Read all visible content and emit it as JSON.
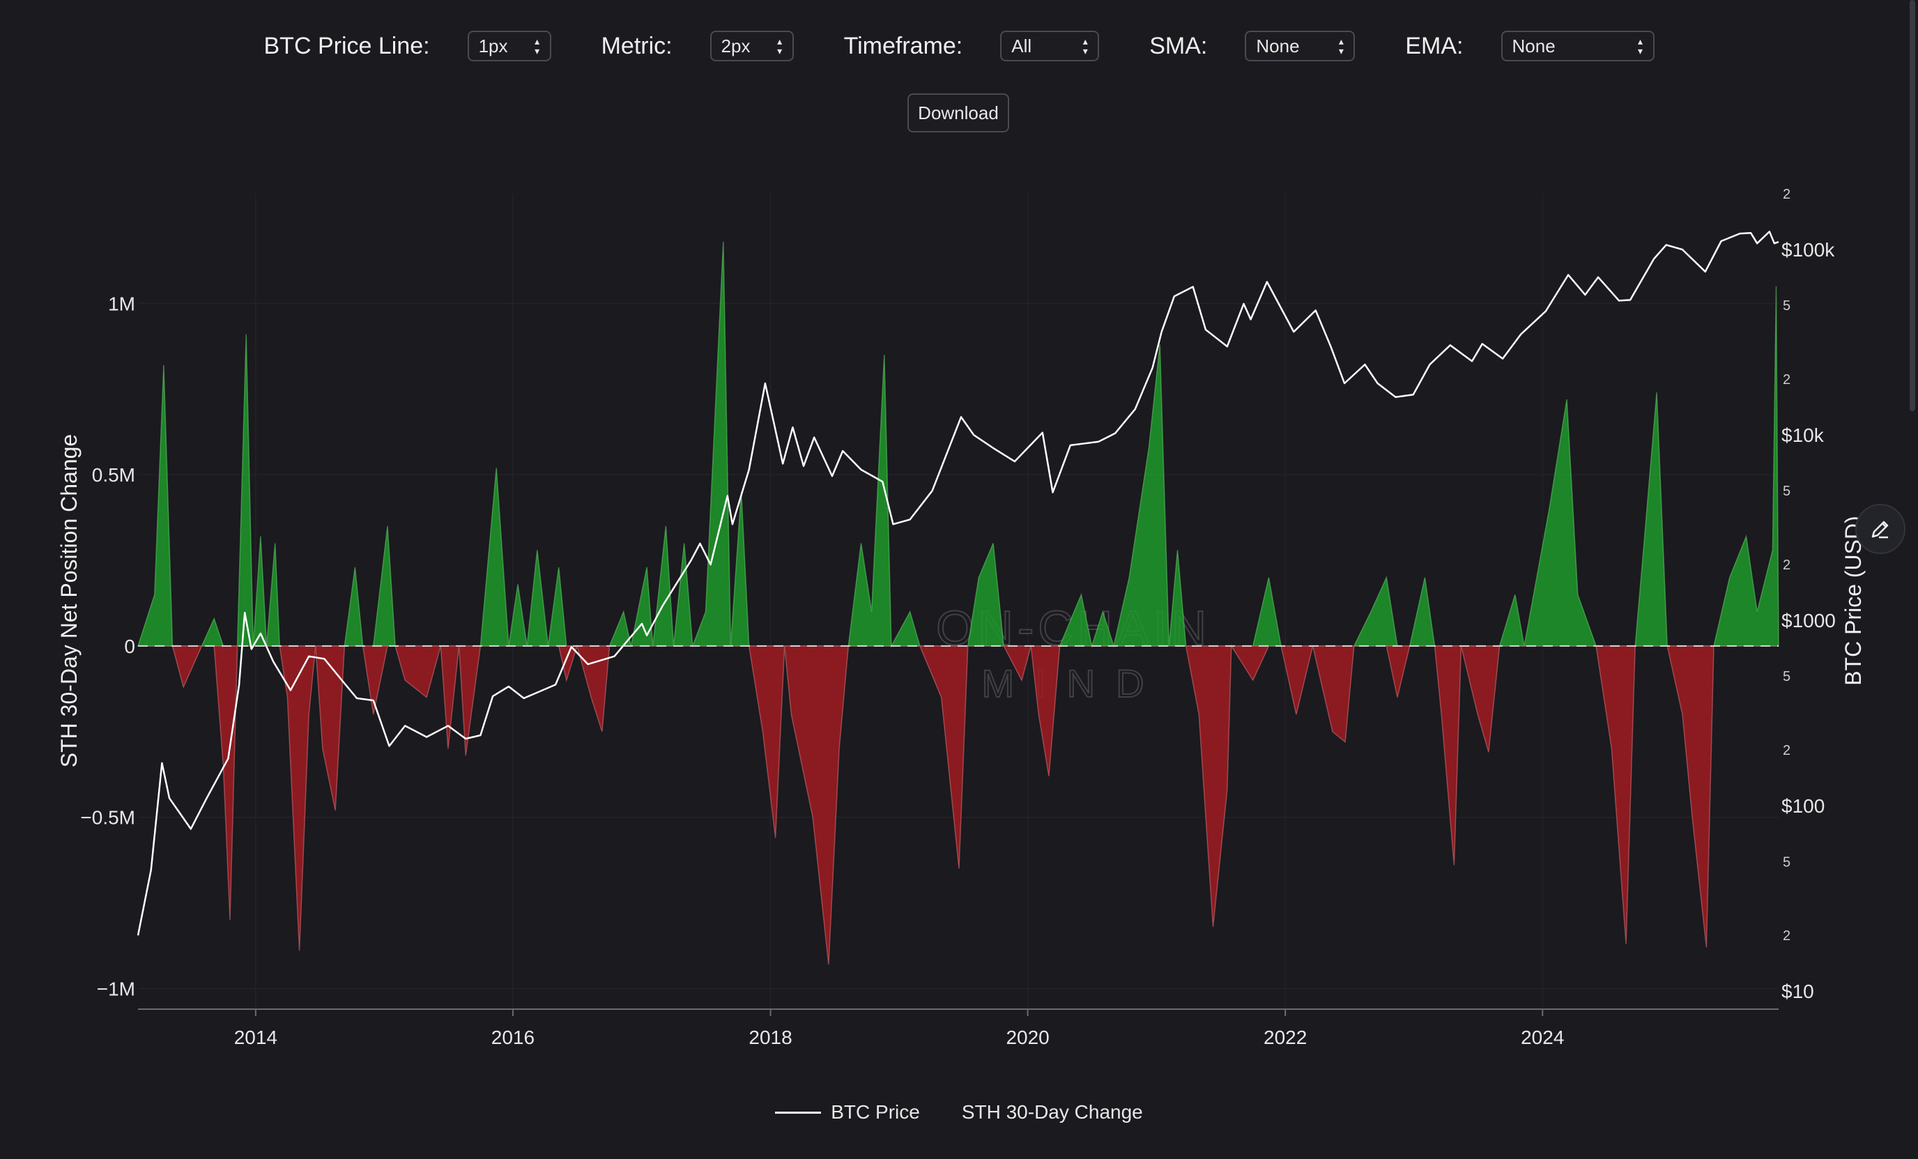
{
  "controls": {
    "price_line": {
      "label": "BTC Price Line:",
      "value": "1px"
    },
    "metric": {
      "label": "Metric:",
      "value": "2px"
    },
    "timeframe": {
      "label": "Timeframe:",
      "value": "All"
    },
    "sma": {
      "label": "SMA:",
      "value": "None"
    },
    "ema": {
      "label": "EMA:",
      "value": "None"
    },
    "download_label": "Download"
  },
  "watermark": {
    "line1": "ON-CHAIN",
    "line2": "MIND"
  },
  "icons": {
    "edit": "pencil-icon",
    "select_chevron": "chevron-updown-icon"
  },
  "colors": {
    "positive": "#1f9a2a",
    "negative": "#a01c22",
    "price": "#ffffff",
    "background": "#1a1a1f"
  },
  "chart_data": {
    "type": "area",
    "title": "",
    "xlabel": "",
    "ylabel_left": "STH 30-Day Net Position Change",
    "ylabel_right": "BTC Price (USD)",
    "x_ticks": [
      "2014",
      "2016",
      "2018",
      "2020",
      "2022",
      "2024"
    ],
    "y_left_ticks": [
      "1M",
      "0.5M",
      "0",
      "−0.5M",
      "−1M"
    ],
    "y_left_tick_values": [
      1000000,
      500000,
      0,
      -500000,
      -1000000
    ],
    "y_left_range": [
      -1060000,
      1320000
    ],
    "y_right_scale": "log",
    "y_right_range": [
      8,
      200000
    ],
    "y_right_major_ticks": [
      {
        "value": 100000,
        "label": "$100k"
      },
      {
        "value": 10000,
        "label": "$10k"
      },
      {
        "value": 1000,
        "label": "$1000"
      },
      {
        "value": 100,
        "label": "$100"
      },
      {
        "value": 10,
        "label": "$10"
      }
    ],
    "y_right_minor_ticks": [
      {
        "value": 200000,
        "label": "2"
      },
      {
        "value": 50000,
        "label": "5"
      },
      {
        "value": 20000,
        "label": "2"
      },
      {
        "value": 5000,
        "label": "5"
      },
      {
        "value": 2000,
        "label": "2"
      },
      {
        "value": 500,
        "label": "5"
      },
      {
        "value": 200,
        "label": "2"
      },
      {
        "value": 50,
        "label": "5"
      },
      {
        "value": 20,
        "label": "2"
      }
    ],
    "x_range": [
      "2013-02-01",
      "2025-11-01"
    ],
    "grid": true,
    "legend": {
      "position": "bottom",
      "entries": [
        "BTC Price",
        "STH 30-Day Change"
      ]
    },
    "series": [
      {
        "name": "BTC Price",
        "style": "line",
        "axis": "right",
        "points": [
          [
            "2013-02-01",
            20
          ],
          [
            "2013-03-10",
            45
          ],
          [
            "2013-04-10",
            170
          ],
          [
            "2013-05-01",
            110
          ],
          [
            "2013-07-01",
            75
          ],
          [
            "2013-08-15",
            110
          ],
          [
            "2013-10-15",
            180
          ],
          [
            "2013-11-15",
            450
          ],
          [
            "2013-12-01",
            1100
          ],
          [
            "2013-12-20",
            700
          ],
          [
            "2014-01-15",
            850
          ],
          [
            "2014-02-20",
            600
          ],
          [
            "2014-04-10",
            420
          ],
          [
            "2014-06-01",
            640
          ],
          [
            "2014-07-15",
            620
          ],
          [
            "2014-09-01",
            480
          ],
          [
            "2014-10-15",
            380
          ],
          [
            "2014-12-01",
            370
          ],
          [
            "2015-01-15",
            210
          ],
          [
            "2015-03-01",
            270
          ],
          [
            "2015-05-01",
            235
          ],
          [
            "2015-07-01",
            270
          ],
          [
            "2015-08-20",
            230
          ],
          [
            "2015-10-01",
            240
          ],
          [
            "2015-11-05",
            390
          ],
          [
            "2015-12-20",
            440
          ],
          [
            "2016-02-01",
            380
          ],
          [
            "2016-05-01",
            450
          ],
          [
            "2016-06-15",
            720
          ],
          [
            "2016-08-01",
            580
          ],
          [
            "2016-10-15",
            640
          ],
          [
            "2017-01-01",
            960
          ],
          [
            "2017-01-15",
            830
          ],
          [
            "2017-03-01",
            1200
          ],
          [
            "2017-05-20",
            2100
          ],
          [
            "2017-06-15",
            2600
          ],
          [
            "2017-07-15",
            2000
          ],
          [
            "2017-09-01",
            4700
          ],
          [
            "2017-09-15",
            3300
          ],
          [
            "2017-11-01",
            6500
          ],
          [
            "2017-12-17",
            19000
          ],
          [
            "2018-02-05",
            7000
          ],
          [
            "2018-03-05",
            11000
          ],
          [
            "2018-04-05",
            6800
          ],
          [
            "2018-05-05",
            9700
          ],
          [
            "2018-06-25",
            6000
          ],
          [
            "2018-07-25",
            8200
          ],
          [
            "2018-09-15",
            6500
          ],
          [
            "2018-11-15",
            5600
          ],
          [
            "2018-12-15",
            3300
          ],
          [
            "2019-02-01",
            3500
          ],
          [
            "2019-04-05",
            5000
          ],
          [
            "2019-06-26",
            12500
          ],
          [
            "2019-08-01",
            10000
          ],
          [
            "2019-09-25",
            8500
          ],
          [
            "2019-11-25",
            7200
          ],
          [
            "2020-02-12",
            10300
          ],
          [
            "2020-03-12",
            4900
          ],
          [
            "2020-05-01",
            8800
          ],
          [
            "2020-07-20",
            9200
          ],
          [
            "2020-09-05",
            10200
          ],
          [
            "2020-11-01",
            13800
          ],
          [
            "2020-12-20",
            23000
          ],
          [
            "2021-01-15",
            36000
          ],
          [
            "2021-02-20",
            56000
          ],
          [
            "2021-04-14",
            63000
          ],
          [
            "2021-05-20",
            37000
          ],
          [
            "2021-07-20",
            30000
          ],
          [
            "2021-09-05",
            51000
          ],
          [
            "2021-09-25",
            42000
          ],
          [
            "2021-11-10",
            67000
          ],
          [
            "2022-01-25",
            36000
          ],
          [
            "2022-03-28",
            47000
          ],
          [
            "2022-05-10",
            30000
          ],
          [
            "2022-06-18",
            19000
          ],
          [
            "2022-08-15",
            24000
          ],
          [
            "2022-09-20",
            19000
          ],
          [
            "2022-11-10",
            16000
          ],
          [
            "2022-12-30",
            16500
          ],
          [
            "2023-02-15",
            24000
          ],
          [
            "2023-04-14",
            30500
          ],
          [
            "2023-06-15",
            25000
          ],
          [
            "2023-07-14",
            31000
          ],
          [
            "2023-09-10",
            25800
          ],
          [
            "2023-11-01",
            35000
          ],
          [
            "2024-01-10",
            46500
          ],
          [
            "2024-03-14",
            73000
          ],
          [
            "2024-05-01",
            57000
          ],
          [
            "2024-06-07",
            71000
          ],
          [
            "2024-08-05",
            53000
          ],
          [
            "2024-09-06",
            53500
          ],
          [
            "2024-11-12",
            89000
          ],
          [
            "2024-12-17",
            106000
          ],
          [
            "2025-02-01",
            100000
          ],
          [
            "2025-04-07",
            76000
          ],
          [
            "2025-05-22",
            111000
          ],
          [
            "2025-07-14",
            122000
          ],
          [
            "2025-08-14",
            123000
          ],
          [
            "2025-09-01",
            108000
          ],
          [
            "2025-10-06",
            125000
          ],
          [
            "2025-10-20",
            108000
          ],
          [
            "2025-11-01",
            110000
          ]
        ]
      },
      {
        "name": "STH 30-Day Change",
        "style": "area",
        "axis": "left",
        "points": [
          [
            "2013-02-01",
            0
          ],
          [
            "2013-03-20",
            150000
          ],
          [
            "2013-04-15",
            820000
          ],
          [
            "2013-05-10",
            0
          ],
          [
            "2013-06-10",
            -120000
          ],
          [
            "2013-08-01",
            0
          ],
          [
            "2013-09-05",
            80000
          ],
          [
            "2013-10-01",
            -350000
          ],
          [
            "2013-10-20",
            -800000
          ],
          [
            "2013-11-10",
            0
          ],
          [
            "2013-12-05",
            910000
          ],
          [
            "2013-12-25",
            0
          ],
          [
            "2014-01-15",
            320000
          ],
          [
            "2014-02-01",
            0
          ],
          [
            "2014-02-25",
            300000
          ],
          [
            "2014-03-10",
            0
          ],
          [
            "2014-04-01",
            -150000
          ],
          [
            "2014-05-05",
            -890000
          ],
          [
            "2014-06-01",
            -200000
          ],
          [
            "2014-06-20",
            0
          ],
          [
            "2014-07-10",
            -300000
          ],
          [
            "2014-08-15",
            -480000
          ],
          [
            "2014-09-10",
            0
          ],
          [
            "2014-10-10",
            230000
          ],
          [
            "2014-11-01",
            0
          ],
          [
            "2014-12-01",
            -200000
          ],
          [
            "2015-01-10",
            350000
          ],
          [
            "2015-02-01",
            0
          ],
          [
            "2015-03-01",
            -100000
          ],
          [
            "2015-05-01",
            -150000
          ],
          [
            "2015-06-10",
            0
          ],
          [
            "2015-07-01",
            -300000
          ],
          [
            "2015-08-01",
            0
          ],
          [
            "2015-08-20",
            -320000
          ],
          [
            "2015-10-01",
            0
          ],
          [
            "2015-11-15",
            520000
          ],
          [
            "2015-12-20",
            0
          ],
          [
            "2016-01-15",
            180000
          ],
          [
            "2016-02-10",
            0
          ],
          [
            "2016-03-10",
            280000
          ],
          [
            "2016-04-10",
            0
          ],
          [
            "2016-05-10",
            230000
          ],
          [
            "2016-06-01",
            -100000
          ],
          [
            "2016-07-01",
            0
          ],
          [
            "2016-08-10",
            -150000
          ],
          [
            "2016-09-10",
            -250000
          ],
          [
            "2016-10-01",
            0
          ],
          [
            "2016-11-10",
            100000
          ],
          [
            "2016-12-01",
            0
          ],
          [
            "2017-01-15",
            230000
          ],
          [
            "2017-02-01",
            0
          ],
          [
            "2017-03-10",
            350000
          ],
          [
            "2017-04-01",
            0
          ],
          [
            "2017-05-01",
            300000
          ],
          [
            "2017-05-25",
            0
          ],
          [
            "2017-07-01",
            100000
          ],
          [
            "2017-08-20",
            1180000
          ],
          [
            "2017-09-10",
            0
          ],
          [
            "2017-10-10",
            450000
          ],
          [
            "2017-11-01",
            0
          ],
          [
            "2017-12-10",
            -250000
          ],
          [
            "2018-01-15",
            -560000
          ],
          [
            "2018-02-10",
            0
          ],
          [
            "2018-03-01",
            -200000
          ],
          [
            "2018-05-01",
            -500000
          ],
          [
            "2018-06-15",
            -930000
          ],
          [
            "2018-07-15",
            -300000
          ],
          [
            "2018-08-10",
            0
          ],
          [
            "2018-09-15",
            300000
          ],
          [
            "2018-10-15",
            100000
          ],
          [
            "2018-11-20",
            850000
          ],
          [
            "2018-12-10",
            0
          ],
          [
            "2019-02-01",
            100000
          ],
          [
            "2019-03-01",
            0
          ],
          [
            "2019-05-01",
            -150000
          ],
          [
            "2019-06-20",
            -650000
          ],
          [
            "2019-07-15",
            0
          ],
          [
            "2019-08-15",
            200000
          ],
          [
            "2019-09-25",
            300000
          ],
          [
            "2019-10-25",
            0
          ],
          [
            "2019-12-15",
            -100000
          ],
          [
            "2020-01-10",
            0
          ],
          [
            "2020-02-01",
            -200000
          ],
          [
            "2020-03-01",
            -380000
          ],
          [
            "2020-04-01",
            0
          ],
          [
            "2020-06-01",
            150000
          ],
          [
            "2020-07-01",
            0
          ],
          [
            "2020-08-01",
            100000
          ],
          [
            "2020-09-01",
            0
          ],
          [
            "2020-10-15",
            200000
          ],
          [
            "2020-12-10",
            580000
          ],
          [
            "2021-01-10",
            880000
          ],
          [
            "2021-02-05",
            0
          ],
          [
            "2021-03-01",
            280000
          ],
          [
            "2021-03-25",
            0
          ],
          [
            "2021-05-01",
            -200000
          ],
          [
            "2021-06-10",
            -820000
          ],
          [
            "2021-07-20",
            -420000
          ],
          [
            "2021-08-01",
            0
          ],
          [
            "2021-10-01",
            -100000
          ],
          [
            "2021-11-15",
            200000
          ],
          [
            "2021-12-20",
            0
          ],
          [
            "2022-02-01",
            -200000
          ],
          [
            "2022-03-20",
            0
          ],
          [
            "2022-05-15",
            -250000
          ],
          [
            "2022-06-20",
            -280000
          ],
          [
            "2022-07-15",
            0
          ],
          [
            "2022-09-01",
            100000
          ],
          [
            "2022-10-15",
            200000
          ],
          [
            "2022-11-15",
            -150000
          ],
          [
            "2022-12-20",
            0
          ],
          [
            "2023-02-01",
            200000
          ],
          [
            "2023-03-01",
            0
          ],
          [
            "2023-03-20",
            -200000
          ],
          [
            "2023-04-25",
            -640000
          ],
          [
            "2023-05-15",
            0
          ],
          [
            "2023-07-01",
            -200000
          ],
          [
            "2023-08-01",
            -310000
          ],
          [
            "2023-09-01",
            0
          ],
          [
            "2023-10-15",
            150000
          ],
          [
            "2023-11-10",
            0
          ],
          [
            "2024-01-20",
            400000
          ],
          [
            "2024-03-10",
            720000
          ],
          [
            "2024-04-10",
            150000
          ],
          [
            "2024-06-01",
            0
          ],
          [
            "2024-07-15",
            -300000
          ],
          [
            "2024-08-25",
            -870000
          ],
          [
            "2024-09-20",
            0
          ],
          [
            "2024-10-15",
            300000
          ],
          [
            "2024-11-20",
            740000
          ],
          [
            "2024-12-20",
            0
          ],
          [
            "2025-02-01",
            -200000
          ],
          [
            "2025-03-01",
            -500000
          ],
          [
            "2025-04-10",
            -880000
          ],
          [
            "2025-05-01",
            0
          ],
          [
            "2025-06-15",
            200000
          ],
          [
            "2025-08-01",
            320000
          ],
          [
            "2025-09-01",
            100000
          ],
          [
            "2025-10-15",
            280000
          ],
          [
            "2025-10-25",
            1050000
          ],
          [
            "2025-11-01",
            0
          ]
        ]
      }
    ]
  }
}
